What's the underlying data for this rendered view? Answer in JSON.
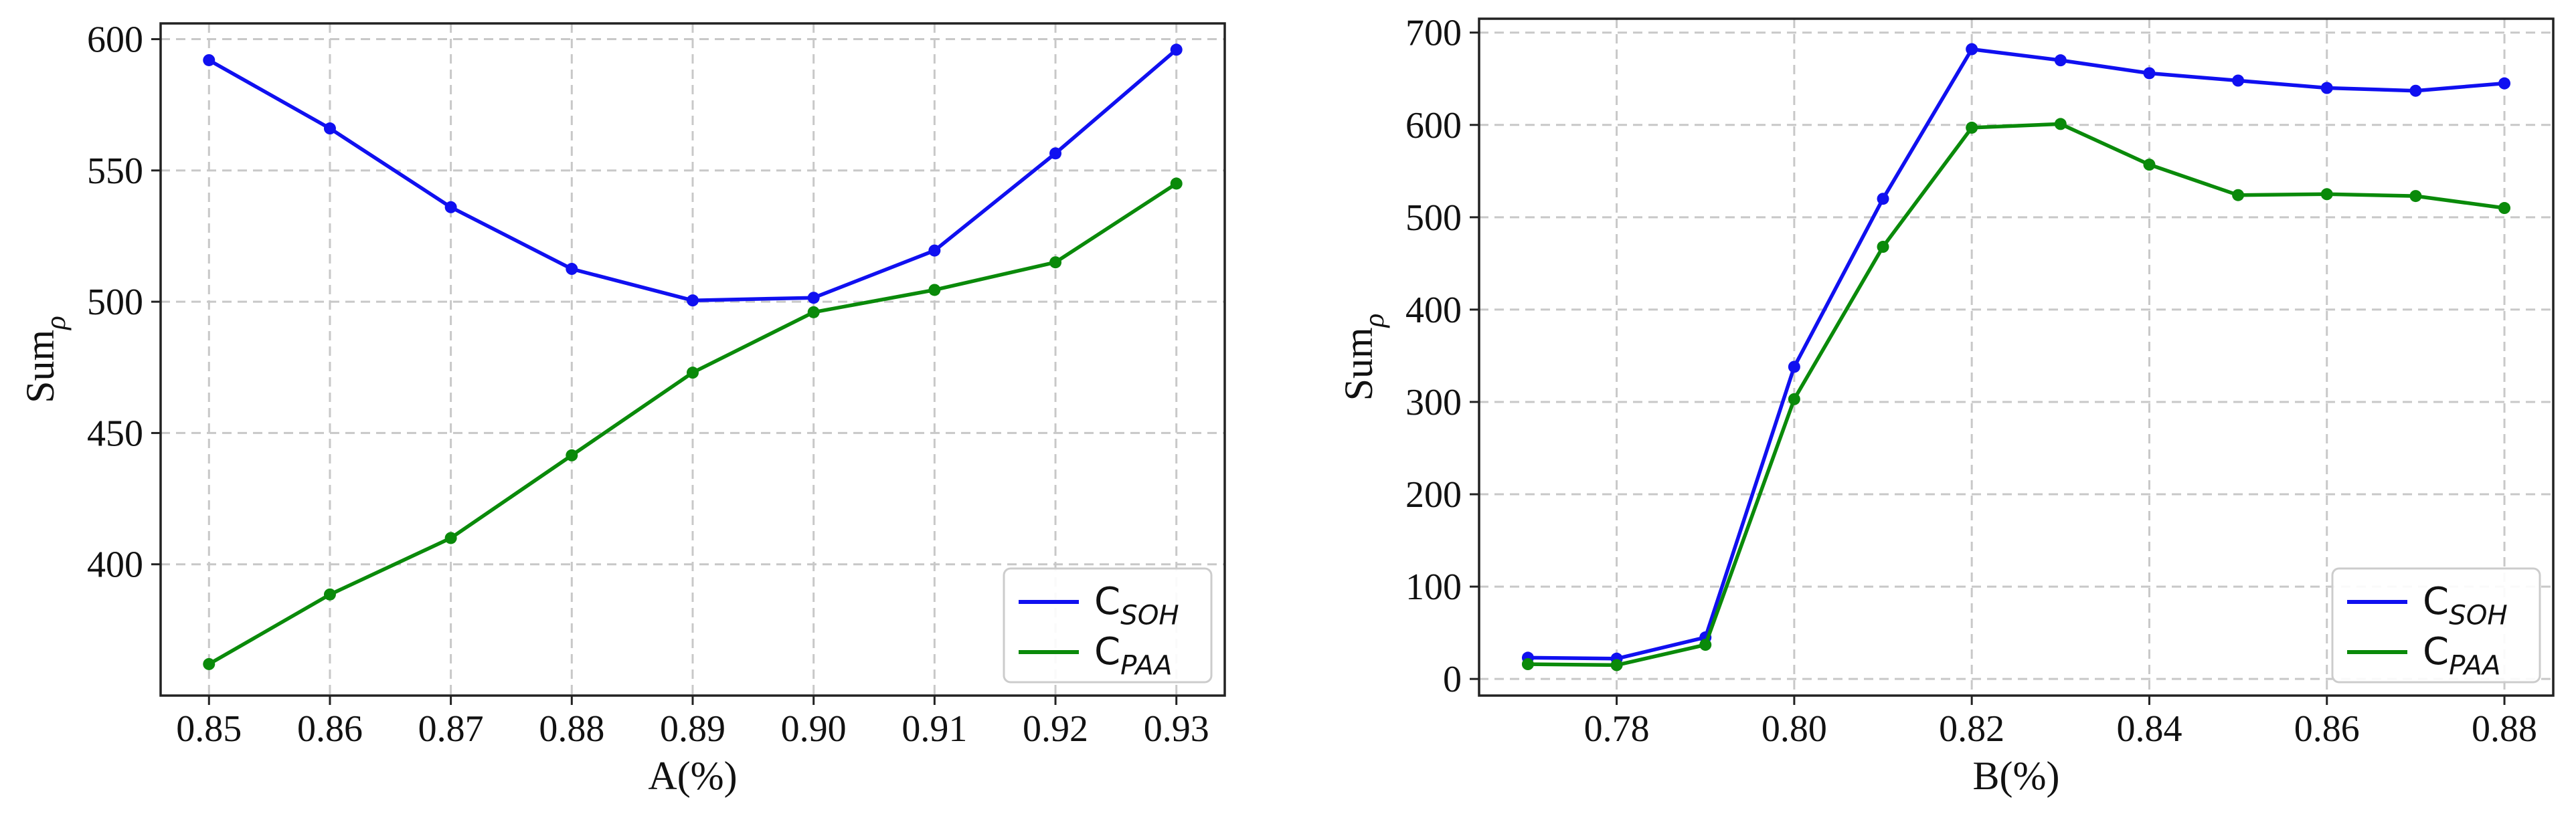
{
  "colors": {
    "soh": "#1010f0",
    "paa": "#0a8a0a",
    "grid": "#c8c8c8",
    "axis": "#222222"
  },
  "chart_data": [
    {
      "type": "line",
      "xlabel": "A(%)",
      "ylabel": {
        "base": "Sum",
        "sub": "ρ"
      },
      "x": [
        0.85,
        0.86,
        0.87,
        0.88,
        0.89,
        0.9,
        0.91,
        0.92,
        0.93
      ],
      "xticks": [
        "0.85",
        "0.86",
        "0.87",
        "0.88",
        "0.89",
        "0.90",
        "0.91",
        "0.92",
        "0.93"
      ],
      "yticks": [
        400,
        450,
        500,
        550,
        600
      ],
      "xlim": [
        0.846,
        0.934
      ],
      "ylim": [
        350,
        606
      ],
      "grid": true,
      "legend_position": "bottom-right",
      "series": [
        {
          "key": "soh",
          "name": {
            "base": "C",
            "sub": "SOH"
          },
          "values": [
            592,
            566,
            536,
            512.5,
            500.5,
            501.5,
            519.5,
            556.5,
            596
          ]
        },
        {
          "key": "paa",
          "name": {
            "base": "C",
            "sub": "PAA"
          },
          "values": [
            362,
            388.5,
            410,
            441.5,
            473,
            496,
            504.5,
            515,
            545
          ]
        }
      ]
    },
    {
      "type": "line",
      "xlabel": "B(%)",
      "ylabel": {
        "base": "Sum",
        "sub": "ρ"
      },
      "x": [
        0.77,
        0.78,
        0.79,
        0.8,
        0.81,
        0.82,
        0.83,
        0.84,
        0.85,
        0.86,
        0.87,
        0.88
      ],
      "xticks": [
        "0.78",
        "0.80",
        "0.82",
        "0.84",
        "0.86",
        "0.88"
      ],
      "xtick_values": [
        0.78,
        0.8,
        0.82,
        0.84,
        0.86,
        0.88
      ],
      "yticks": [
        0,
        100,
        200,
        300,
        400,
        500,
        600,
        700
      ],
      "xlim": [
        0.7645,
        0.8855
      ],
      "ylim": [
        -18,
        715
      ],
      "grid": true,
      "legend_position": "bottom-right",
      "series": [
        {
          "key": "soh",
          "name": {
            "base": "C",
            "sub": "SOH"
          },
          "values": [
            23,
            22,
            45,
            338,
            520,
            682,
            670,
            656,
            648,
            640,
            637,
            645
          ]
        },
        {
          "key": "paa",
          "name": {
            "base": "C",
            "sub": "PAA"
          },
          "values": [
            16,
            15,
            37,
            303,
            468,
            597,
            601,
            557,
            524,
            525,
            523,
            510
          ]
        }
      ]
    }
  ]
}
